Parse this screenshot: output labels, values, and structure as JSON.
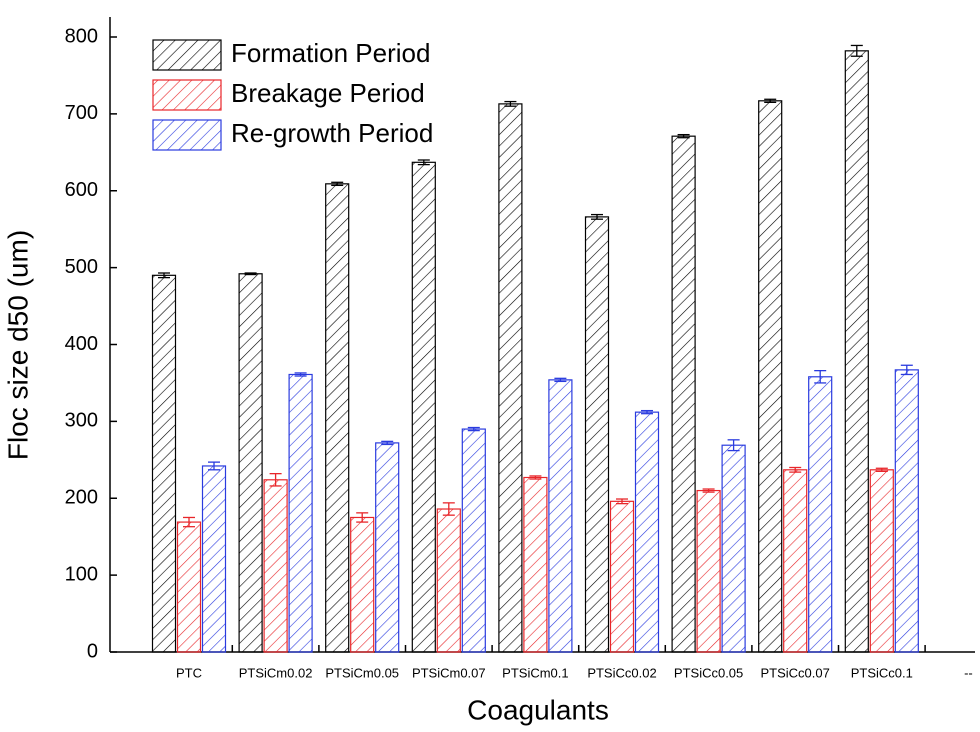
{
  "chart_data": {
    "type": "bar",
    "x_label": "Coagulants",
    "y_label": "Floc size d50 (um)",
    "categories": [
      "PTC",
      "PTSiCm0.02",
      "PTSiCm0.05",
      "PTSiCm0.07",
      "PTSiCm0.1",
      "PTSiCc0.02",
      "PTSiCc0.05",
      "PTSiCc0.07",
      "PTSiCc0.1",
      "--"
    ],
    "series": [
      {
        "name": "Formation Period",
        "color": "#000000",
        "values": [
          490,
          492,
          609,
          637,
          713,
          566,
          671,
          717,
          782,
          null
        ],
        "errors": [
          3,
          1,
          2,
          3,
          3,
          3,
          2,
          2,
          7,
          null
        ]
      },
      {
        "name": "Breakage Period",
        "color": "#e8262a",
        "values": [
          169,
          224,
          175,
          186,
          227,
          196,
          210,
          237,
          237,
          null
        ],
        "errors": [
          6,
          8,
          6,
          8,
          2,
          3,
          2,
          3,
          2,
          null
        ]
      },
      {
        "name": "Re-growth Period",
        "color": "#2a3bdf",
        "values": [
          242,
          361,
          272,
          290,
          354,
          312,
          269,
          358,
          367,
          null
        ],
        "errors": [
          5,
          2,
          2,
          2,
          2,
          2,
          7,
          8,
          6,
          null
        ]
      }
    ],
    "ylim": [
      0,
      800
    ],
    "yticks": [
      0,
      100,
      200,
      300,
      400,
      500,
      600,
      700,
      800
    ],
    "legend": "upper-left",
    "hatch": true
  }
}
